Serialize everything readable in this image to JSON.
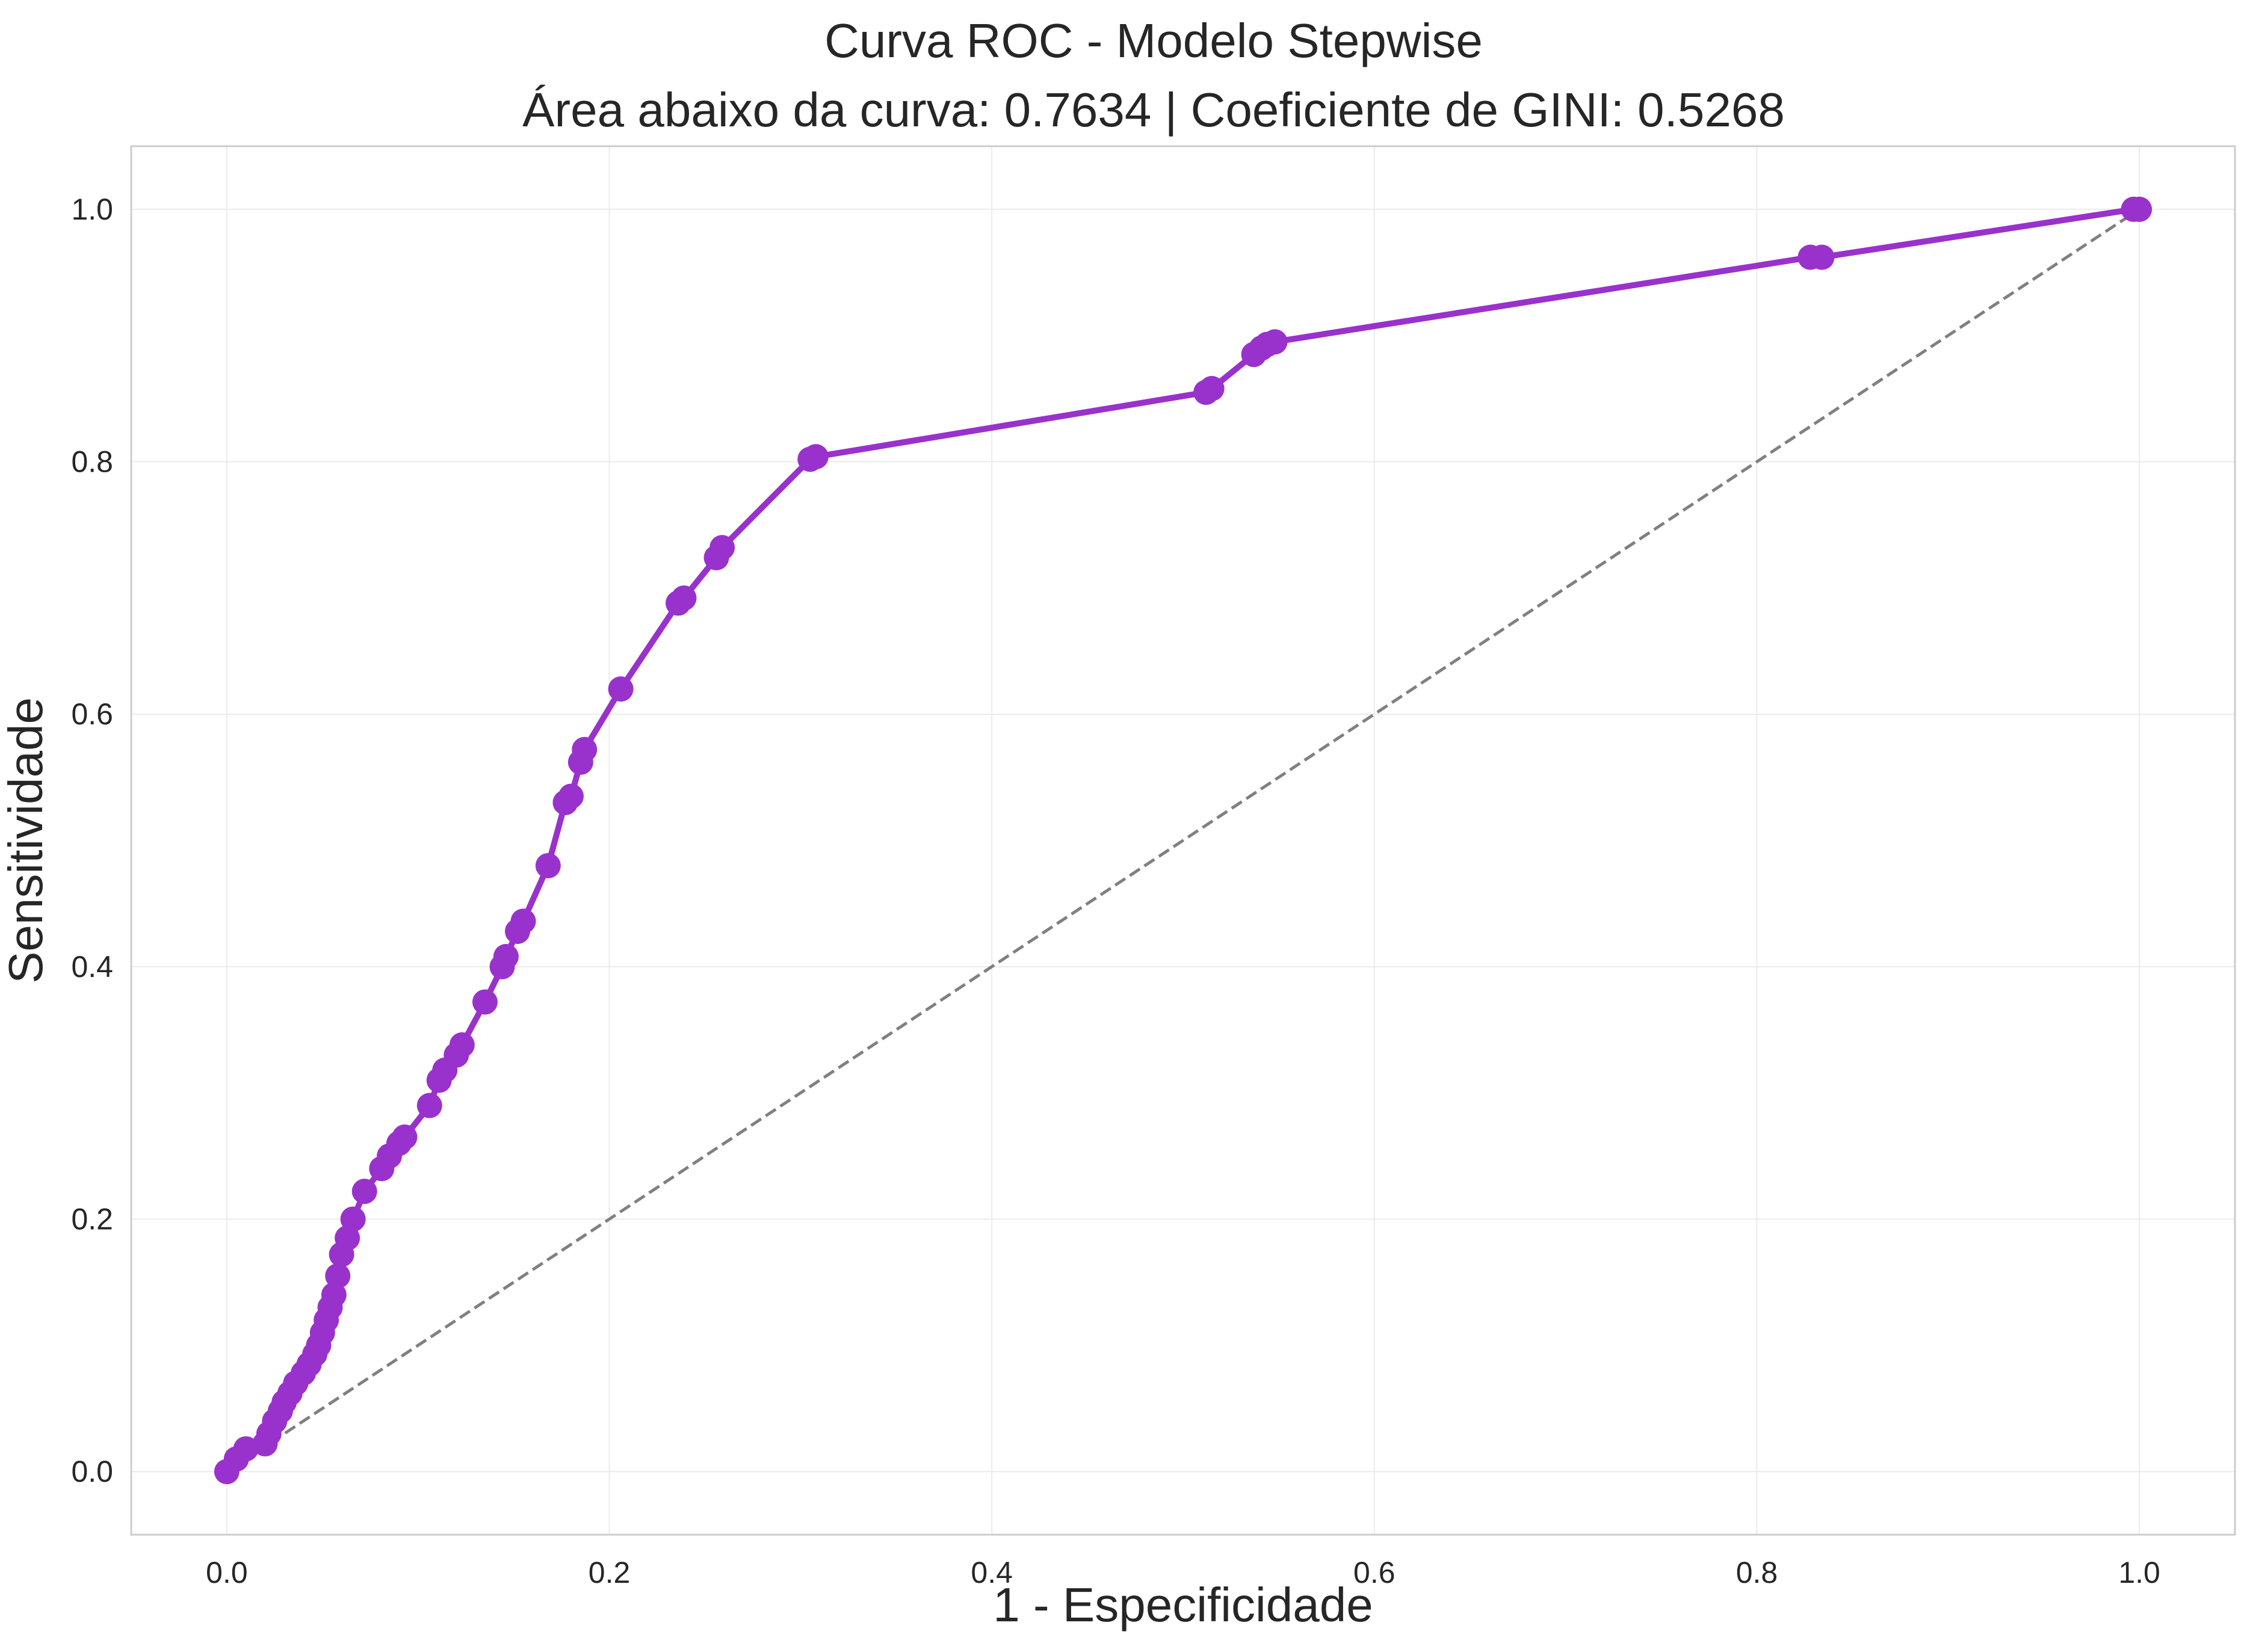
{
  "colors": {
    "curve": "#9932CC",
    "diagonal": "#808080",
    "grid": "#ebebeb",
    "frame": "#cccccc",
    "text": "#262626"
  },
  "chart_data": {
    "type": "line",
    "title": "Curva ROC - Modelo Stepwise",
    "subtitle": "Área abaixo da curva: 0.7634 | Coeficiente de GINI: 0.5268",
    "xlabel": "1 - Especificidade",
    "ylabel": "Sensitividade",
    "xlim": [
      -0.05,
      1.05
    ],
    "ylim": [
      -0.05,
      1.05
    ],
    "grid": true,
    "x_ticks": [
      "0.0",
      "0.2",
      "0.4",
      "0.6",
      "0.8",
      "1.0"
    ],
    "y_ticks": [
      "0.0",
      "0.2",
      "0.4",
      "0.6",
      "0.8",
      "1.0"
    ],
    "series": [
      {
        "style": "line-with-markers",
        "x": [
          0.0,
          0.005,
          0.01,
          0.02,
          0.022,
          0.025,
          0.028,
          0.03,
          0.033,
          0.036,
          0.04,
          0.043,
          0.046,
          0.048,
          0.05,
          0.052,
          0.054,
          0.056,
          0.058,
          0.06,
          0.063,
          0.066,
          0.072,
          0.081,
          0.085,
          0.09,
          0.093,
          0.106,
          0.111,
          0.114,
          0.12,
          0.123,
          0.135,
          0.144,
          0.146,
          0.152,
          0.155,
          0.168,
          0.177,
          0.18,
          0.185,
          0.187,
          0.206,
          0.236,
          0.239,
          0.256,
          0.259,
          0.305,
          0.308,
          0.512,
          0.515,
          0.537,
          0.541,
          0.544,
          0.548,
          0.828,
          0.834,
          0.997,
          1.0
        ],
        "y": [
          0.0,
          0.01,
          0.018,
          0.022,
          0.03,
          0.04,
          0.048,
          0.055,
          0.062,
          0.07,
          0.078,
          0.085,
          0.093,
          0.1,
          0.11,
          0.12,
          0.13,
          0.14,
          0.155,
          0.172,
          0.185,
          0.2,
          0.222,
          0.24,
          0.25,
          0.26,
          0.265,
          0.29,
          0.31,
          0.318,
          0.33,
          0.338,
          0.372,
          0.4,
          0.408,
          0.428,
          0.436,
          0.48,
          0.53,
          0.535,
          0.562,
          0.572,
          0.62,
          0.688,
          0.692,
          0.724,
          0.732,
          0.802,
          0.804,
          0.855,
          0.858,
          0.885,
          0.89,
          0.893,
          0.895,
          0.962,
          0.962,
          1.0,
          1.0
        ]
      },
      {
        "style": "dashed-reference",
        "x": [
          0.0,
          1.0
        ],
        "y": [
          0.0,
          1.0
        ]
      }
    ]
  }
}
